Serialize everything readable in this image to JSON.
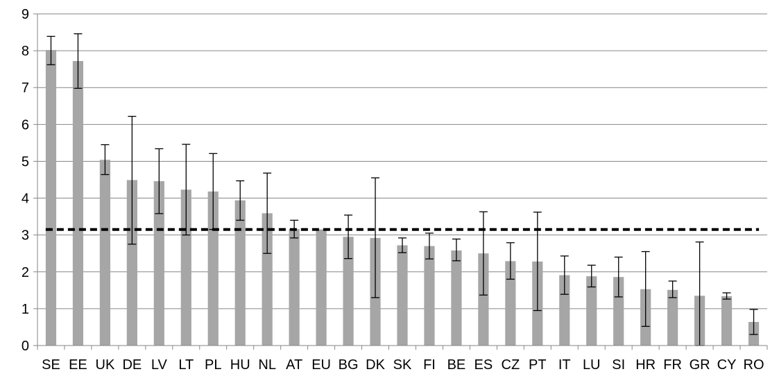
{
  "chart_data": {
    "type": "bar",
    "categories": [
      "SE",
      "EE",
      "UK",
      "DE",
      "LV",
      "LT",
      "PL",
      "HU",
      "NL",
      "AT",
      "EU",
      "BG",
      "DK",
      "SK",
      "FI",
      "BE",
      "ES",
      "CZ",
      "PT",
      "IT",
      "LU",
      "SI",
      "HR",
      "FR",
      "GR",
      "CY",
      "RO"
    ],
    "values": [
      8.02,
      7.72,
      5.04,
      4.49,
      4.46,
      4.23,
      4.18,
      3.94,
      3.59,
      3.16,
      3.15,
      2.95,
      2.92,
      2.72,
      2.7,
      2.58,
      2.5,
      2.29,
      2.28,
      1.91,
      1.88,
      1.86,
      1.53,
      1.51,
      1.35,
      1.34,
      0.64
    ],
    "error_low": [
      7.62,
      6.98,
      4.64,
      2.75,
      3.58,
      3.0,
      3.15,
      3.4,
      2.5,
      2.92,
      null,
      2.36,
      1.3,
      2.52,
      2.35,
      2.3,
      1.37,
      1.8,
      0.95,
      1.39,
      1.59,
      1.32,
      0.52,
      1.3,
      0.0,
      1.26,
      0.3
    ],
    "error_high": [
      8.39,
      8.46,
      5.45,
      6.22,
      5.34,
      5.46,
      5.21,
      4.47,
      4.68,
      3.4,
      null,
      3.54,
      4.55,
      2.92,
      3.05,
      2.89,
      3.63,
      2.79,
      3.62,
      2.43,
      2.18,
      2.4,
      2.55,
      1.75,
      2.81,
      1.43,
      0.98
    ],
    "reference_line": {
      "value": 3.15,
      "style": "dashed"
    },
    "ylim": [
      0,
      9
    ],
    "yticks": [
      "0",
      "1",
      "2",
      "3",
      "4",
      "5",
      "6",
      "7",
      "8",
      "9"
    ],
    "grid": true,
    "colors": {
      "bar": "#a6a6a6",
      "grid": "#868686",
      "reference": "#000000",
      "error": "#000000"
    },
    "title": "",
    "xlabel": "",
    "ylabel": ""
  }
}
